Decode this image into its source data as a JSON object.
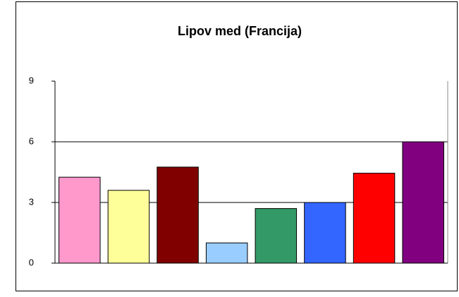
{
  "chart_data": {
    "type": "bar",
    "title": "Lipov med (Francija)",
    "categories": [
      null,
      null,
      null,
      null,
      null,
      null,
      null,
      null
    ],
    "values": [
      4.25,
      3.6,
      4.75,
      1.0,
      2.7,
      3.0,
      4.45,
      6.0
    ],
    "colors": [
      "#ff99cc",
      "#ffff99",
      "#800000",
      "#99ccff",
      "#339966",
      "#3366ff",
      "#ff0000",
      "#800080"
    ],
    "ylim": [
      0,
      9
    ],
    "yticks": [
      0,
      3,
      6,
      9
    ],
    "grid": true
  }
}
